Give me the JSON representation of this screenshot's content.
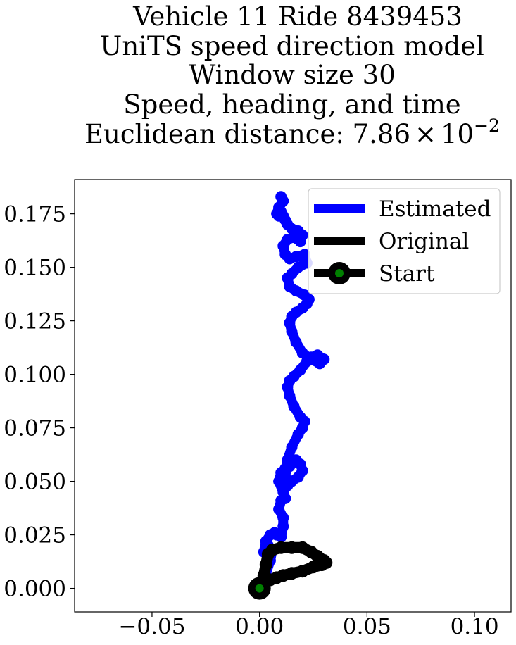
{
  "chart_data": {
    "type": "line",
    "title_lines": [
      "Vehicle 11 Ride 8439453",
      "UniTS speed direction model",
      "Window size 30",
      "Speed, heading, and time"
    ],
    "title_distance_prefix": "Euclidean distance: 7.86",
    "title_distance_times": "×",
    "title_distance_base": "10",
    "title_distance_exponent": "−2",
    "xlabel": "",
    "ylabel": "",
    "xlim": [
      -0.086,
      0.117
    ],
    "ylim": [
      -0.011,
      0.191
    ],
    "x_ticks": [
      -0.05,
      0.0,
      0.05,
      0.1
    ],
    "x_tick_labels": [
      "−0.05",
      "0.00",
      "0.05",
      "0.10"
    ],
    "y_ticks": [
      0.0,
      0.025,
      0.05,
      0.075,
      0.1,
      0.125,
      0.15,
      0.175
    ],
    "y_tick_labels": [
      "0.000",
      "0.025",
      "0.050",
      "0.075",
      "0.100",
      "0.125",
      "0.150",
      "0.175"
    ],
    "grid": false,
    "legend_position": "top-right",
    "colors": {
      "estimated": "#0000ff",
      "original": "#000000",
      "start_outer": "#000000",
      "start_inner": "#008000"
    },
    "series": [
      {
        "name": "Estimated",
        "x": [
          0.0,
          0.003,
          0.005,
          0.006,
          0.004,
          0.002,
          0.003,
          0.005,
          0.007,
          0.008,
          0.01,
          0.011,
          0.011,
          0.009,
          0.01,
          0.012,
          0.011,
          0.009,
          0.01,
          0.012,
          0.014,
          0.016,
          0.017,
          0.019,
          0.02,
          0.018,
          0.015,
          0.013,
          0.012,
          0.013,
          0.015,
          0.018,
          0.02,
          0.021,
          0.019,
          0.016,
          0.014,
          0.013,
          0.014,
          0.016,
          0.019,
          0.022,
          0.024,
          0.027,
          0.03,
          0.028,
          0.024,
          0.02,
          0.017,
          0.015,
          0.014,
          0.015,
          0.017,
          0.02,
          0.022,
          0.023,
          0.021,
          0.017,
          0.014,
          0.013,
          0.015,
          0.018,
          0.022,
          0.021,
          0.017,
          0.014,
          0.012,
          0.011,
          0.013,
          0.016,
          0.019,
          0.02,
          0.018,
          0.015,
          0.013,
          0.012,
          0.011,
          0.01,
          0.009,
          0.008,
          0.009,
          0.011,
          0.01
        ],
        "y": [
          0.0,
          0.007,
          0.013,
          0.018,
          0.02,
          0.017,
          0.022,
          0.025,
          0.026,
          0.025,
          0.024,
          0.029,
          0.033,
          0.037,
          0.041,
          0.042,
          0.045,
          0.05,
          0.054,
          0.056,
          0.057,
          0.059,
          0.06,
          0.058,
          0.055,
          0.052,
          0.05,
          0.048,
          0.052,
          0.06,
          0.066,
          0.072,
          0.075,
          0.078,
          0.08,
          0.085,
          0.09,
          0.094,
          0.097,
          0.099,
          0.102,
          0.106,
          0.108,
          0.109,
          0.107,
          0.105,
          0.107,
          0.11,
          0.115,
          0.12,
          0.124,
          0.127,
          0.129,
          0.131,
          0.133,
          0.135,
          0.137,
          0.139,
          0.141,
          0.145,
          0.147,
          0.15,
          0.152,
          0.156,
          0.155,
          0.154,
          0.156,
          0.16,
          0.163,
          0.164,
          0.162,
          0.165,
          0.167,
          0.168,
          0.17,
          0.172,
          0.174,
          0.176,
          0.174,
          0.175,
          0.178,
          0.181,
          0.183
        ]
      },
      {
        "name": "Original",
        "x": [
          0.0,
          0.002,
          0.003,
          0.004,
          0.006,
          0.01,
          0.015,
          0.02,
          0.024,
          0.027,
          0.03,
          0.031,
          0.029,
          0.025,
          0.02,
          0.015,
          0.011,
          0.008,
          0.005,
          0.003,
          0.001,
          0.0
        ],
        "y": [
          0.0,
          0.006,
          0.011,
          0.016,
          0.018,
          0.019,
          0.019,
          0.019,
          0.017,
          0.015,
          0.013,
          0.012,
          0.011,
          0.01,
          0.008,
          0.007,
          0.006,
          0.005,
          0.004,
          0.003,
          0.001,
          0.0
        ]
      }
    ],
    "start_point": {
      "name": "Start",
      "x": 0.0,
      "y": 0.0
    }
  }
}
